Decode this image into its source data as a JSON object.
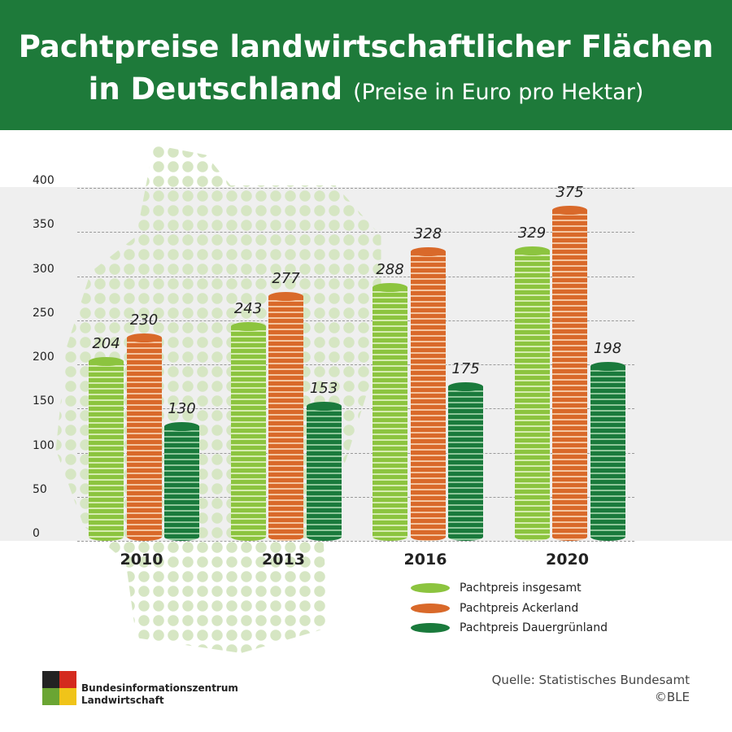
{
  "header": {
    "title_line1": "Pachtpreise landwirtschaftlicher Flächen",
    "title_line2": "in Deutschland",
    "subtitle": "(Preise in Euro pro Hektar)"
  },
  "chart_data": {
    "type": "bar",
    "title": "Pachtpreise landwirtschaftlicher Flächen in Deutschland (Preise in Euro pro Hektar)",
    "categories": [
      "2010",
      "2013",
      "2016",
      "2020"
    ],
    "series": [
      {
        "name": "Pachtpreis insgesamt",
        "color": "#8cc43f",
        "stripe": "#d6ecb0",
        "values": [
          204,
          243,
          288,
          329
        ]
      },
      {
        "name": "Pachtpreis Ackerland",
        "color": "#d9692a",
        "stripe": "#f4c5a0",
        "values": [
          230,
          277,
          328,
          375
        ]
      },
      {
        "name": "Pachtpreis Dauergrünland",
        "color": "#1a7a3c",
        "stripe": "#8fc79a",
        "values": [
          130,
          153,
          175,
          198
        ]
      }
    ],
    "yticks": [
      0,
      50,
      100,
      150,
      200,
      250,
      300,
      350,
      400
    ],
    "ylim": [
      0,
      400
    ],
    "xlabel": "",
    "ylabel": "",
    "grid": true,
    "legend": "bottom-right"
  },
  "footer": {
    "logo_line1": "Bundesinformationszentrum",
    "logo_line2": "Landwirtschaft",
    "source": "Quelle: Statistisches Bundesamt",
    "copyright": "©BLE"
  }
}
